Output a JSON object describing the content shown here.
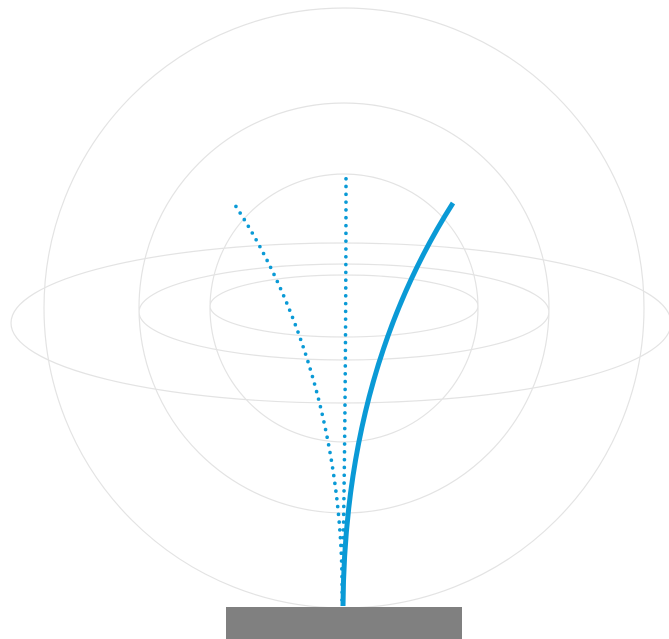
{
  "colors": {
    "accent": "#0a9ad6",
    "guide": "#e3e3e3",
    "base": "#808080",
    "background": "#ffffff"
  },
  "diagram": {
    "guide_spheres": 3,
    "guide_rings": 3,
    "rod_positions": [
      {
        "state": "bent-left",
        "style": "dotted"
      },
      {
        "state": "upright",
        "style": "dotted"
      },
      {
        "state": "bent-right",
        "style": "solid"
      }
    ]
  }
}
